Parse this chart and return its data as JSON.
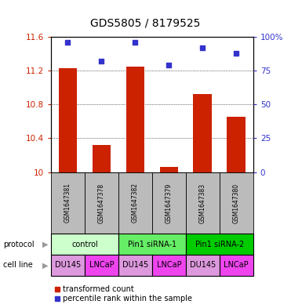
{
  "title": "GDS5805 / 8179525",
  "samples": [
    "GSM1647381",
    "GSM1647378",
    "GSM1647382",
    "GSM1647379",
    "GSM1647383",
    "GSM1647380"
  ],
  "transformed_counts": [
    11.23,
    10.32,
    11.25,
    10.06,
    10.92,
    10.65
  ],
  "percentile_ranks": [
    96,
    82,
    96,
    79,
    92,
    88
  ],
  "ylim_left": [
    10,
    11.6
  ],
  "ylim_right": [
    0,
    100
  ],
  "yticks_left": [
    10,
    10.4,
    10.8,
    11.2,
    11.6
  ],
  "yticks_right": [
    0,
    25,
    50,
    75,
    100
  ],
  "ytick_labels_left": [
    "10",
    "10.4",
    "10.8",
    "11.2",
    "11.6"
  ],
  "ytick_labels_right": [
    "0",
    "25",
    "50",
    "75",
    "100%"
  ],
  "protocols": [
    {
      "label": "control",
      "span": [
        0,
        2
      ],
      "color": "#ccffcc"
    },
    {
      "label": "Pin1 siRNA-1",
      "span": [
        2,
        4
      ],
      "color": "#66ee66"
    },
    {
      "label": "Pin1 siRNA-2",
      "span": [
        4,
        6
      ],
      "color": "#00cc00"
    }
  ],
  "cell_colors_list": [
    "#dd88dd",
    "#ee44ee",
    "#dd88dd",
    "#ee44ee",
    "#dd88dd",
    "#ee44ee"
  ],
  "cell_labels_list": [
    "DU145",
    "LNCaP",
    "DU145",
    "LNCaP",
    "DU145",
    "LNCaP"
  ],
  "bar_color": "#cc2200",
  "dot_color": "#3333cc",
  "bar_width": 0.55,
  "label_red": "transformed count",
  "label_blue": "percentile rank within the sample",
  "bg_color": "#ffffff",
  "plot_bg": "#ffffff",
  "gsm_bg": "#bbbbbb",
  "gsm_label_fontsize": 5.5,
  "protocol_fontsize": 7,
  "cell_line_fontsize": 7,
  "legend_fontsize": 7,
  "title_fontsize": 10
}
